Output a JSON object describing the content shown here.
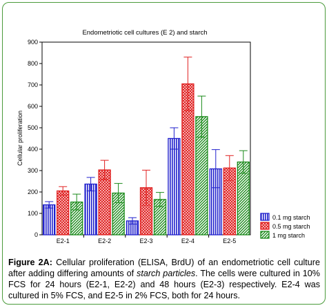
{
  "chart_data": {
    "type": "bar",
    "title": "Endometriotic cell cultures (E 2) and starch",
    "xlabel": "",
    "ylabel": "Cellular proliferation",
    "ylim": [
      0,
      900
    ],
    "yticks": [
      0,
      100,
      200,
      300,
      400,
      500,
      600,
      700,
      800,
      900
    ],
    "grid": false,
    "legend_position": "bottom-right",
    "categories": [
      "E2-1",
      "E2-2",
      "E2-3",
      "E2-4",
      "E2-5"
    ],
    "series": [
      {
        "name": "0.1 mg starch",
        "color": "#1f1fcc",
        "pattern": "vertical-lines",
        "values": [
          140,
          237,
          65,
          450,
          308
        ],
        "error_upper": [
          155,
          268,
          80,
          500,
          398
        ],
        "error_lower": [
          125,
          205,
          50,
          400,
          220
        ]
      },
      {
        "name": "0.5 mg starch",
        "color": "#e02020",
        "pattern": "crosshatch",
        "values": [
          205,
          303,
          220,
          705,
          312
        ],
        "error_upper": [
          225,
          348,
          302,
          830,
          370
        ],
        "error_lower": [
          185,
          258,
          138,
          580,
          254
        ]
      },
      {
        "name": "1 mg starch",
        "color": "#1a8a1a",
        "pattern": "diagonal-lines",
        "values": [
          153,
          195,
          165,
          552,
          340
        ],
        "error_upper": [
          190,
          240,
          198,
          648,
          393
        ],
        "error_lower": [
          116,
          150,
          132,
          456,
          287
        ]
      }
    ]
  },
  "caption": {
    "label": "Figure 2A:",
    "text_before": " Cellular proliferation (ELISA, BrdU) of an endometriotic cell culture after adding differing amounts of ",
    "emphasis": "starch particles",
    "text_after": ". The cells were cultured in 10% FCS for 24 hours (E2-1, E2-2) and 48 hours (E2-3) respectively. E2-4 was cultured in 5% FCS, and E2-5 in 2% FCS, both for 24 hours."
  }
}
